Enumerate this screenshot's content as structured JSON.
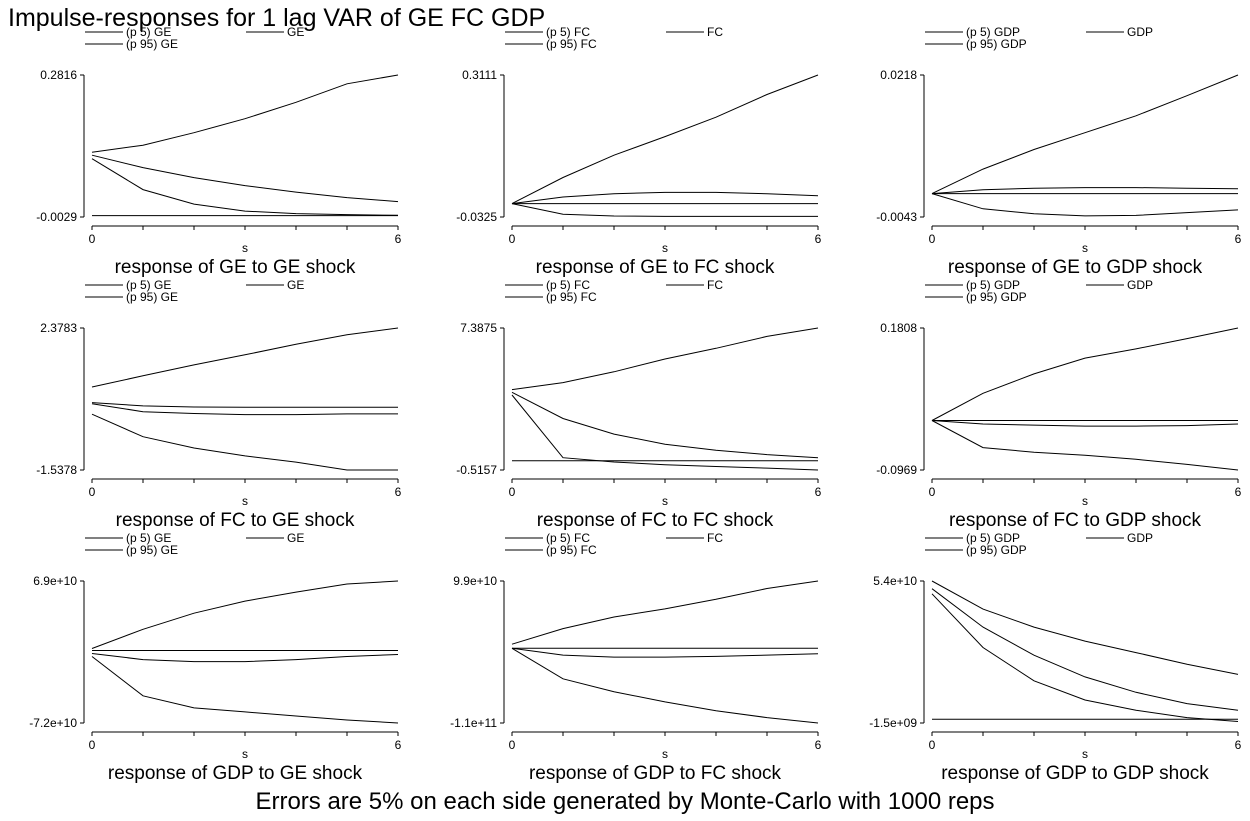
{
  "title": "Impulse-responses for 1 lag VAR of GE FC GDP",
  "note": "Errors are 5% on each side generated by Monte-Carlo with 1000 reps",
  "chart_data": [
    {
      "type": "line",
      "title": "response of GE to GE shock",
      "xlabel": "s",
      "ylim_labels": [
        "-0.0029",
        "0.2816"
      ],
      "ylim": [
        -0.0029,
        0.2816
      ],
      "x": [
        0,
        1,
        2,
        3,
        4,
        5,
        6
      ],
      "legend": [
        {
          "name": "(p 5) GE"
        },
        {
          "name": "GE"
        },
        {
          "name": "(p 95) GE"
        }
      ],
      "series": [
        {
          "name": "(p 5) GE",
          "values": [
            0.114,
            0.052,
            0.023,
            0.009,
            0.004,
            0.002,
            0.0005
          ]
        },
        {
          "name": "GE",
          "values": [
            0.121,
            0.096,
            0.076,
            0.06,
            0.047,
            0.036,
            0.028
          ]
        },
        {
          "name": "(p 95) GE",
          "values": [
            0.127,
            0.141,
            0.166,
            0.194,
            0.227,
            0.264,
            0.2816
          ]
        },
        {
          "name": "",
          "values": [
            0.0,
            0.0,
            0.0,
            0.0,
            0.0,
            0.0,
            0.0
          ]
        }
      ]
    },
    {
      "type": "line",
      "title": "response of GE to FC shock",
      "xlabel": "s",
      "ylim_labels": [
        "-0.0325",
        "0.3111"
      ],
      "ylim": [
        -0.0325,
        0.3111
      ],
      "x": [
        0,
        1,
        2,
        3,
        4,
        5,
        6
      ],
      "legend": [
        {
          "name": "(p 5) FC"
        },
        {
          "name": "FC"
        },
        {
          "name": "(p 95) FC"
        }
      ],
      "series": [
        {
          "name": "(p 5) FC",
          "values": [
            0.0,
            -0.026,
            -0.03,
            -0.031,
            -0.031,
            -0.031,
            -0.031
          ]
        },
        {
          "name": "FC",
          "values": [
            0.0,
            0.016,
            0.024,
            0.027,
            0.027,
            0.024,
            0.019
          ]
        },
        {
          "name": "(p 95) FC",
          "values": [
            0.0,
            0.063,
            0.117,
            0.162,
            0.209,
            0.264,
            0.3111
          ]
        },
        {
          "name": "",
          "values": [
            0.0,
            0.0,
            0.0,
            0.0,
            0.0,
            0.0,
            0.0
          ]
        }
      ]
    },
    {
      "type": "line",
      "title": "response of GE to GDP shock",
      "xlabel": "s",
      "ylim_labels": [
        "-0.0043",
        "0.0218"
      ],
      "ylim": [
        -0.0043,
        0.0218
      ],
      "x": [
        0,
        1,
        2,
        3,
        4,
        5,
        6
      ],
      "legend": [
        {
          "name": "(p 5) GDP"
        },
        {
          "name": "GDP"
        },
        {
          "name": "(p 95) GDP"
        }
      ],
      "series": [
        {
          "name": "(p 5) GDP",
          "values": [
            0.0,
            -0.0028,
            -0.0037,
            -0.0041,
            -0.004,
            -0.0035,
            -0.003
          ]
        },
        {
          "name": "GDP",
          "values": [
            0.0,
            0.0007,
            0.001,
            0.0011,
            0.0011,
            0.001,
            0.0009
          ]
        },
        {
          "name": "(p 95) GDP",
          "values": [
            0.0,
            0.0045,
            0.0081,
            0.0112,
            0.0143,
            0.018,
            0.0218
          ]
        },
        {
          "name": "",
          "values": [
            0.0,
            0.0,
            0.0,
            0.0,
            0.0,
            0.0,
            0.0
          ]
        }
      ]
    },
    {
      "type": "line",
      "title": "response of FC to GE shock",
      "xlabel": "s",
      "ylim_labels": [
        "-1.5378",
        "2.3783"
      ],
      "ylim": [
        -1.5378,
        2.3783
      ],
      "x": [
        0,
        1,
        2,
        3,
        4,
        5,
        6
      ],
      "legend": [
        {
          "name": "(p 5) GE"
        },
        {
          "name": "GE"
        },
        {
          "name": "(p 95) GE"
        }
      ],
      "series": [
        {
          "name": "(p 5) GE",
          "values": [
            0.0,
            -0.62,
            -0.93,
            -1.15,
            -1.32,
            -1.5378,
            -1.5378
          ]
        },
        {
          "name": "GE",
          "values": [
            0.29,
            0.07,
            0.02,
            -0.01,
            -0.01,
            0.01,
            0.01
          ]
        },
        {
          "name": "(p 95) GE",
          "values": [
            0.75,
            1.06,
            1.36,
            1.64,
            1.93,
            2.19,
            2.3783
          ]
        },
        {
          "name": "",
          "values": [
            0.32,
            0.23,
            0.2,
            0.19,
            0.19,
            0.19,
            0.19
          ]
        }
      ]
    },
    {
      "type": "line",
      "title": "response of FC to FC shock",
      "xlabel": "s",
      "ylim_labels": [
        "-0.5157",
        "7.3875"
      ],
      "ylim": [
        -0.5157,
        7.3875
      ],
      "x": [
        0,
        1,
        2,
        3,
        4,
        5,
        6
      ],
      "legend": [
        {
          "name": "(p 5) FC"
        },
        {
          "name": "FC"
        },
        {
          "name": "(p 95) FC"
        }
      ],
      "series": [
        {
          "name": "(p 5) FC",
          "values": [
            3.66,
            0.17,
            -0.07,
            -0.22,
            -0.32,
            -0.41,
            -0.5157
          ]
        },
        {
          "name": "FC",
          "values": [
            3.81,
            2.35,
            1.48,
            0.92,
            0.58,
            0.34,
            0.17
          ]
        },
        {
          "name": "(p 95) FC",
          "values": [
            3.96,
            4.35,
            4.95,
            5.66,
            6.26,
            6.92,
            7.3875
          ]
        },
        {
          "name": "",
          "values": [
            0.0,
            0.0,
            0.0,
            0.0,
            0.0,
            0.0,
            0.0
          ]
        }
      ]
    },
    {
      "type": "line",
      "title": "response of FC to GDP shock",
      "xlabel": "s",
      "ylim_labels": [
        "-0.0969",
        "0.1808"
      ],
      "ylim": [
        -0.0969,
        0.1808
      ],
      "x": [
        0,
        1,
        2,
        3,
        4,
        5,
        6
      ],
      "legend": [
        {
          "name": "(p 5) GDP"
        },
        {
          "name": "GDP"
        },
        {
          "name": "(p 95) GDP"
        }
      ],
      "series": [
        {
          "name": "(p 5) GDP",
          "values": [
            0.0,
            -0.053,
            -0.062,
            -0.068,
            -0.076,
            -0.086,
            -0.0969
          ]
        },
        {
          "name": "GDP",
          "values": [
            0.0,
            -0.007,
            -0.009,
            -0.011,
            -0.011,
            -0.01,
            -0.007
          ]
        },
        {
          "name": "(p 95) GDP",
          "values": [
            0.0,
            0.053,
            0.091,
            0.122,
            0.14,
            0.16,
            0.1808
          ]
        },
        {
          "name": "",
          "values": [
            0.0,
            0.0,
            0.0,
            0.0,
            0.0,
            0.0,
            0.0
          ]
        }
      ]
    },
    {
      "type": "line",
      "title": "response of GDP to GE shock",
      "xlabel": "s",
      "ylim_labels": [
        "-7.2e+10",
        "6.9e+10"
      ],
      "ylim": [
        -72000000000,
        69000000000
      ],
      "x": [
        0,
        1,
        2,
        3,
        4,
        5,
        6
      ],
      "legend": [
        {
          "name": "(p 5) GE"
        },
        {
          "name": "GE"
        },
        {
          "name": "(p 95) GE"
        }
      ],
      "series": [
        {
          "name": "(p 5) GE",
          "values": [
            -6000000000,
            -45000000000,
            -57000000000,
            -61000000000,
            -65000000000,
            -69000000000,
            -72000000000
          ]
        },
        {
          "name": "GE",
          "values": [
            -3000000000,
            -9000000000,
            -11000000000,
            -11000000000,
            -9000000000,
            -6000000000,
            -4000000000
          ]
        },
        {
          "name": "(p 95) GE",
          "values": [
            2000000000,
            21000000000,
            37000000000,
            49000000000,
            58000000000,
            66000000000,
            69000000000
          ]
        },
        {
          "name": "",
          "values": [
            0,
            0,
            0,
            0,
            0,
            0,
            0
          ]
        }
      ]
    },
    {
      "type": "line",
      "title": "response of GDP to FC shock",
      "xlabel": "s",
      "ylim_labels": [
        "-1.1e+11",
        "9.9e+10"
      ],
      "ylim": [
        -110000000000,
        99000000000
      ],
      "x": [
        0,
        1,
        2,
        3,
        4,
        5,
        6
      ],
      "legend": [
        {
          "name": "(p 5) FC"
        },
        {
          "name": "FC"
        },
        {
          "name": "(p 95) FC"
        }
      ],
      "series": [
        {
          "name": "(p 5) FC",
          "values": [
            0,
            -45000000000,
            -64000000000,
            -79000000000,
            -92000000000,
            -102000000000,
            -110000000000
          ]
        },
        {
          "name": "FC",
          "values": [
            0,
            -10000000000,
            -13000000000,
            -13000000000,
            -12000000000,
            -10000000000,
            -8000000000
          ]
        },
        {
          "name": "(p 95) FC",
          "values": [
            6000000000,
            29000000000,
            46000000000,
            58000000000,
            72000000000,
            88000000000,
            99000000000
          ]
        },
        {
          "name": "",
          "values": [
            0,
            0,
            0,
            0,
            0,
            0,
            0
          ]
        }
      ]
    },
    {
      "type": "line",
      "title": "response of GDP to GDP shock",
      "xlabel": "s",
      "ylim_labels": [
        "-1.5e+09",
        "5.4e+10"
      ],
      "ylim": [
        -1500000000,
        54000000000
      ],
      "x": [
        0,
        1,
        2,
        3,
        4,
        5,
        6
      ],
      "legend": [
        {
          "name": "(p 5) GDP"
        },
        {
          "name": "GDP"
        },
        {
          "name": "(p 95) GDP"
        }
      ],
      "series": [
        {
          "name": "(p 5) GDP",
          "values": [
            49000000000,
            28000000000,
            15000000000,
            7500000000,
            3500000000,
            600000000,
            -900000000
          ]
        },
        {
          "name": "GDP",
          "values": [
            51000000000,
            36000000000,
            25000000000,
            16500000000,
            10500000000,
            6100000000,
            3500000000
          ]
        },
        {
          "name": "(p 95) GDP",
          "values": [
            54000000000,
            43000000000,
            36000000000,
            30500000000,
            26000000000,
            21500000000,
            17500000000
          ]
        },
        {
          "name": "",
          "values": [
            0,
            0,
            0,
            0,
            0,
            0,
            0
          ]
        }
      ]
    }
  ]
}
